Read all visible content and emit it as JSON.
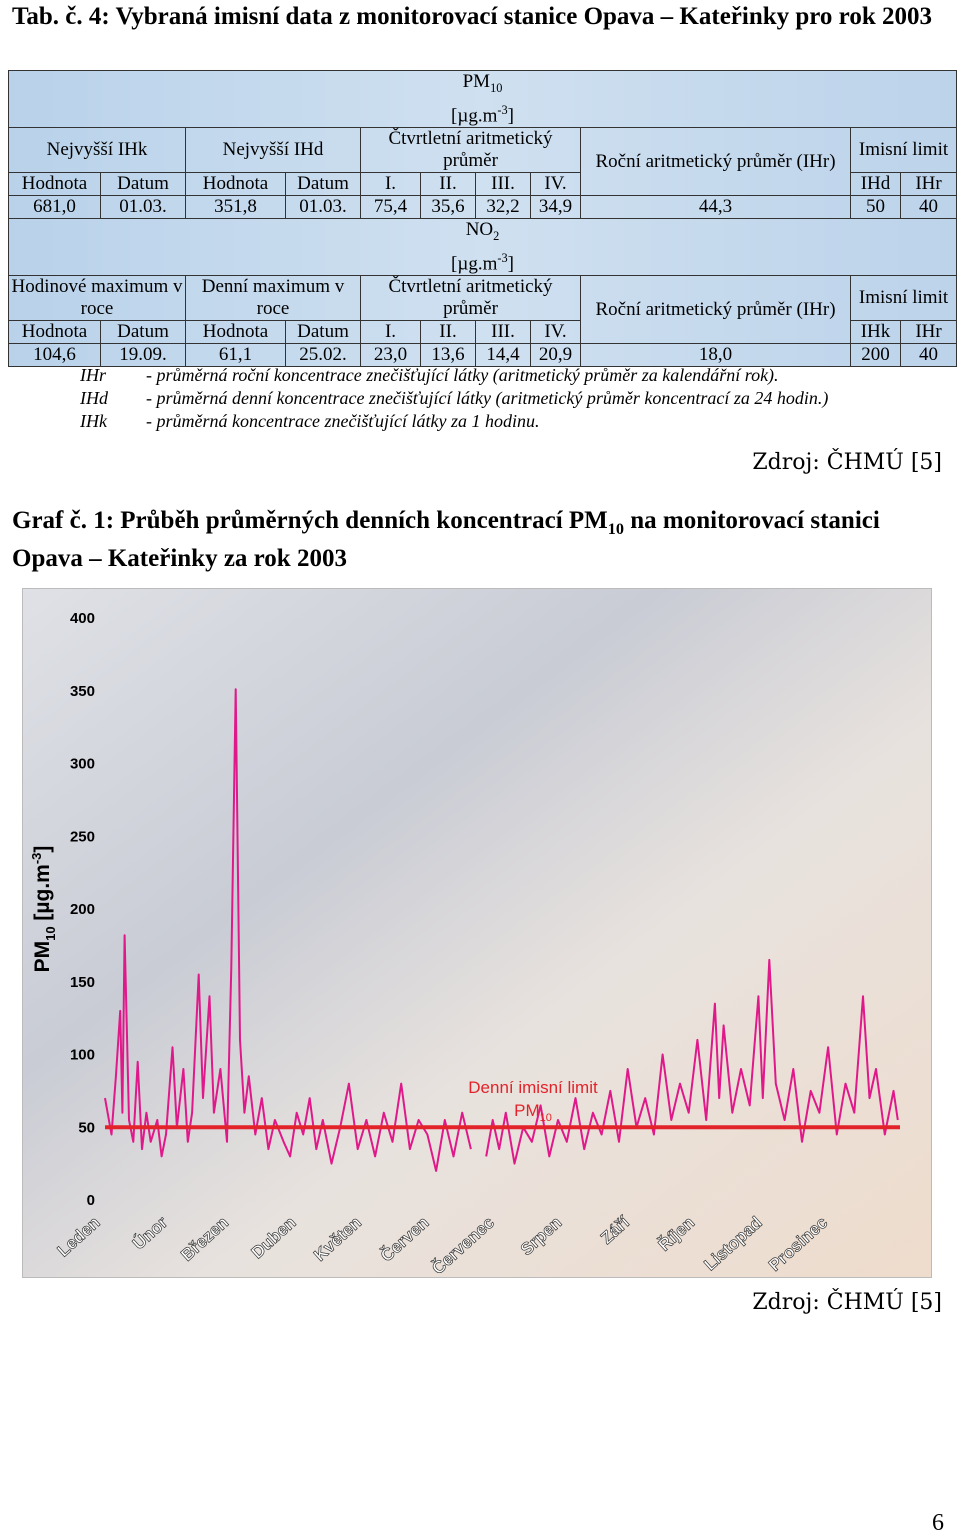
{
  "caption": "Tab. č. 4: Vybraná imisní data z monitorovací stanice Opava – Kateřinky pro rok 2003",
  "tables": [
    {
      "heading": [
        "PM",
        "10",
        "[µg.m",
        "-3",
        "]"
      ],
      "groups": [
        "Nejvyšší IHk",
        "Nejvyšší IHd",
        "Čtvrtletní aritmetický průměr",
        "Roční aritmetický průměr (IHr)",
        "Imisní limit"
      ],
      "columns": [
        "Hodnota",
        "Datum",
        "Hodnota",
        "Datum",
        "I.",
        "II.",
        "III.",
        "IV.",
        "IHd",
        "IHr"
      ],
      "row": [
        "681,0",
        "01.03.",
        "351,8",
        "01.03.",
        "75,4",
        "35,6",
        "32,2",
        "34,9",
        "44,3",
        "50",
        "40"
      ]
    },
    {
      "heading": [
        "NO",
        "2",
        "[µg.m",
        "-3",
        "]"
      ],
      "groups": [
        "Hodinové maximum v roce",
        "Denní maximum v roce",
        "Čtvrtletní aritmetický průměr",
        "Roční aritmetický průměr (IHr)",
        "Imisní limit"
      ],
      "columns": [
        "Hodnota",
        "Datum",
        "Hodnota",
        "Datum",
        "I.",
        "II.",
        "III.",
        "IV.",
        "IHk",
        "IHr"
      ],
      "row": [
        "104,6",
        "19.09.",
        "61,1",
        "25.02.",
        "23,0",
        "13,6",
        "14,4",
        "20,9",
        "18,0",
        "200",
        "40"
      ]
    }
  ],
  "notes": [
    {
      "abbr": "IHr",
      "text": "- průměrná roční koncentrace znečišťující látky (aritmetický průměr za kalendářní rok)."
    },
    {
      "abbr": "IHd",
      "text": "- průměrná denní koncentrace znečišťující látky (aritmetický průměr koncentrací za 24 hodin.)"
    },
    {
      "abbr": "IHk",
      "text": "- průměrná koncentrace znečišťující látky za 1 hodinu."
    }
  ],
  "source_table": "Zdroj: ČHMÚ [5]",
  "graph_caption": [
    "Graf č. 1: Průběh průměrných denních koncentrací PM",
    "10",
    " na monitorovací stanici Opava – Kateřinky za rok 2003"
  ],
  "chart_data": {
    "type": "line",
    "color": "#e0198a",
    "ylabel": [
      "PM",
      "10",
      " [µg.m",
      "-3",
      "]"
    ],
    "ylim": [
      0,
      400
    ],
    "yticks": [
      0,
      50,
      100,
      150,
      200,
      250,
      300,
      350,
      400
    ],
    "xlim": [
      0,
      365
    ],
    "xticks": [
      {
        "value": 0,
        "label": "Leden"
      },
      {
        "value": 31,
        "label": "Únor"
      },
      {
        "value": 59,
        "label": "Březen"
      },
      {
        "value": 90,
        "label": "Duben"
      },
      {
        "value": 120,
        "label": "Květen"
      },
      {
        "value": 151,
        "label": "Červen"
      },
      {
        "value": 181,
        "label": "Červenec"
      },
      {
        "value": 212,
        "label": "Srpen"
      },
      {
        "value": 243,
        "label": "Září"
      },
      {
        "value": 273,
        "label": "Říjen"
      },
      {
        "value": 304,
        "label": "Listopad"
      },
      {
        "value": 334,
        "label": "Prosinec"
      }
    ],
    "x": [
      0,
      3,
      5,
      7,
      8,
      9,
      11,
      13,
      15,
      17,
      19,
      21,
      24,
      26,
      28,
      31,
      33,
      36,
      38,
      40,
      43,
      45,
      48,
      50,
      53,
      56,
      58,
      60,
      62,
      64,
      66,
      69,
      72,
      75,
      78,
      82,
      85,
      88,
      91,
      94,
      97,
      100,
      104,
      108,
      112,
      116,
      120,
      124,
      128,
      132,
      136,
      140,
      144,
      148,
      152,
      156,
      160,
      164,
      168,
      170,
      175,
      178,
      181,
      184,
      188,
      192,
      196,
      200,
      204,
      208,
      212,
      216,
      220,
      224,
      228,
      232,
      236,
      240,
      244,
      248,
      252,
      256,
      260,
      264,
      268,
      272,
      276,
      280,
      282,
      284,
      288,
      292,
      296,
      300,
      302,
      305,
      308,
      312,
      316,
      320,
      324,
      328,
      332,
      336,
      340,
      344,
      348,
      351,
      354,
      358,
      362,
      364
    ],
    "values": [
      70,
      45,
      85,
      130,
      60,
      182,
      55,
      40,
      95,
      35,
      60,
      40,
      55,
      30,
      45,
      105,
      50,
      90,
      40,
      60,
      155,
      70,
      140,
      60,
      90,
      40,
      160,
      351,
      110,
      60,
      85,
      45,
      70,
      35,
      55,
      40,
      30,
      60,
      45,
      70,
      35,
      55,
      25,
      50,
      80,
      35,
      55,
      30,
      60,
      40,
      80,
      35,
      55,
      45,
      20,
      55,
      30,
      60,
      35,
      null,
      30,
      55,
      35,
      60,
      25,
      50,
      40,
      65,
      30,
      55,
      40,
      70,
      35,
      60,
      45,
      75,
      40,
      90,
      50,
      70,
      45,
      100,
      55,
      80,
      60,
      110,
      55,
      135,
      70,
      120,
      60,
      90,
      65,
      140,
      70,
      165,
      80,
      55,
      90,
      40,
      75,
      60,
      105,
      45,
      80,
      60,
      140,
      70,
      90,
      45,
      75,
      55
    ],
    "limit_line": {
      "value": 50,
      "color": "#e3232a",
      "label": [
        "Denní imisní limit",
        "PM",
        "10"
      ]
    }
  },
  "source_graph": "Zdroj: ČHMÚ [5]",
  "page_number": "6"
}
